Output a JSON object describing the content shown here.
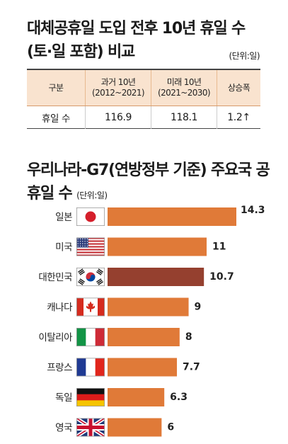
{
  "table_title": "대체공휴일 도입 전후 10년 휴일 수 (토·일 포함) 비교",
  "table_unit": "(단위:일)",
  "table": {
    "headers": [
      "구분",
      "과거 10년",
      "(2012~2021)",
      "미래 10년",
      "(2021~2030)",
      "상승폭"
    ],
    "row": [
      "휴일 수",
      "116.9",
      "118.1",
      "1.2↑"
    ]
  },
  "chart_data": {
    "type": "bar",
    "orientation": "horizontal",
    "title": "우리나라-G7(연방정부 기준) 주요국 공휴일 수",
    "unit": "(단위:일)",
    "categories": [
      "일본",
      "미국",
      "대한민국",
      "캐나다",
      "이탈리아",
      "프랑스",
      "독일",
      "영국"
    ],
    "values": [
      14.3,
      11,
      10.7,
      9,
      8,
      7.7,
      6.3,
      6
    ],
    "value_labels": [
      "14.3",
      "11",
      "10.7",
      "9",
      "8",
      "7.7",
      "6.3",
      "6"
    ],
    "flags": [
      "japan-flag-icon",
      "usa-flag-icon",
      "korea-flag-icon",
      "canada-flag-icon",
      "italy-flag-icon",
      "france-flag-icon",
      "germany-flag-icon",
      "uk-flag-icon"
    ],
    "colors": {
      "bar": "#e07a38",
      "highlight": "#95402f"
    },
    "highlight_index": 2,
    "xlim": [
      0,
      14.3
    ]
  }
}
